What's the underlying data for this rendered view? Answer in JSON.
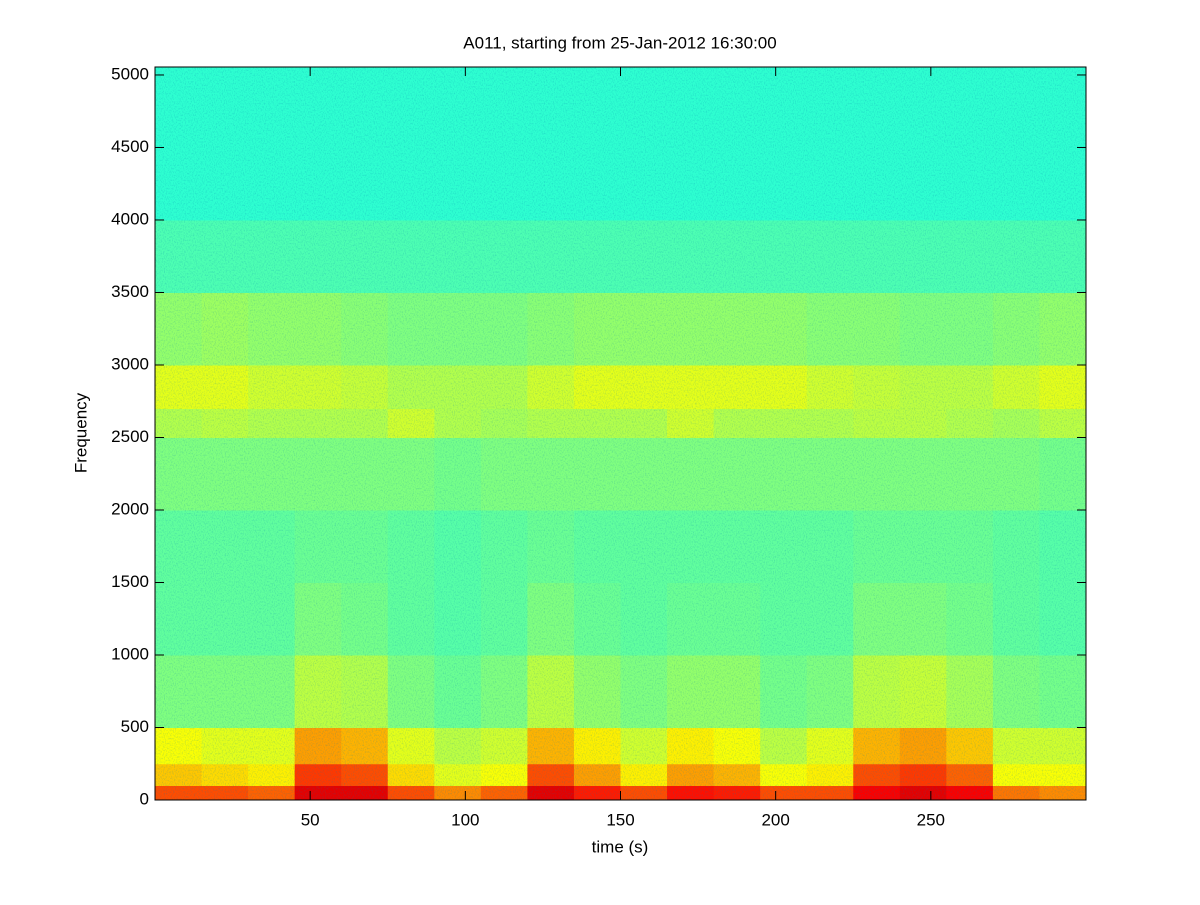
{
  "chart_data": {
    "type": "heatmap",
    "title": "A011, starting from 25-Jan-2012 16:30:00",
    "xlabel": "time (s)",
    "ylabel": "Frequency",
    "colormap": "jet",
    "clim": [
      0,
      1
    ],
    "xlim": [
      0,
      300
    ],
    "ylim": [
      0,
      5055
    ],
    "xticks": [
      50,
      100,
      150,
      200,
      250
    ],
    "yticks": [
      0,
      500,
      1000,
      1500,
      2000,
      2500,
      3000,
      3500,
      4000,
      4500,
      5000
    ],
    "x_edges": [
      0,
      15,
      30,
      45,
      60,
      75,
      90,
      105,
      120,
      135,
      150,
      165,
      180,
      195,
      210,
      225,
      240,
      255,
      270,
      285,
      300
    ],
    "y_edges": [
      0,
      100,
      250,
      500,
      1000,
      1500,
      2000,
      2500,
      2700,
      3000,
      3500,
      4000,
      5055
    ],
    "z": [
      [
        0.8,
        0.8,
        0.78,
        0.9,
        0.9,
        0.8,
        0.74,
        0.78,
        0.9,
        0.85,
        0.8,
        0.86,
        0.85,
        0.8,
        0.8,
        0.88,
        0.9,
        0.88,
        0.76,
        0.74
      ],
      [
        0.68,
        0.66,
        0.64,
        0.82,
        0.8,
        0.66,
        0.6,
        0.62,
        0.8,
        0.72,
        0.64,
        0.72,
        0.7,
        0.62,
        0.64,
        0.8,
        0.82,
        0.78,
        0.62,
        0.62
      ],
      [
        0.62,
        0.6,
        0.6,
        0.72,
        0.7,
        0.6,
        0.56,
        0.58,
        0.7,
        0.64,
        0.58,
        0.64,
        0.62,
        0.56,
        0.6,
        0.7,
        0.72,
        0.68,
        0.58,
        0.58
      ],
      [
        0.5,
        0.5,
        0.5,
        0.56,
        0.55,
        0.5,
        0.48,
        0.5,
        0.56,
        0.52,
        0.5,
        0.52,
        0.52,
        0.49,
        0.5,
        0.56,
        0.57,
        0.54,
        0.5,
        0.49
      ],
      [
        0.47,
        0.47,
        0.47,
        0.5,
        0.49,
        0.47,
        0.46,
        0.47,
        0.5,
        0.48,
        0.47,
        0.48,
        0.48,
        0.47,
        0.47,
        0.5,
        0.5,
        0.49,
        0.47,
        0.46
      ],
      [
        0.47,
        0.47,
        0.47,
        0.48,
        0.48,
        0.47,
        0.46,
        0.47,
        0.48,
        0.47,
        0.47,
        0.47,
        0.47,
        0.47,
        0.47,
        0.48,
        0.48,
        0.48,
        0.47,
        0.46
      ],
      [
        0.5,
        0.5,
        0.5,
        0.5,
        0.5,
        0.5,
        0.49,
        0.5,
        0.5,
        0.5,
        0.5,
        0.5,
        0.5,
        0.5,
        0.5,
        0.5,
        0.5,
        0.5,
        0.5,
        0.49
      ],
      [
        0.55,
        0.56,
        0.55,
        0.55,
        0.55,
        0.58,
        0.55,
        0.54,
        0.55,
        0.55,
        0.55,
        0.58,
        0.55,
        0.55,
        0.55,
        0.56,
        0.56,
        0.55,
        0.54,
        0.56
      ],
      [
        0.6,
        0.6,
        0.58,
        0.58,
        0.57,
        0.55,
        0.55,
        0.55,
        0.58,
        0.6,
        0.6,
        0.6,
        0.6,
        0.6,
        0.58,
        0.57,
        0.56,
        0.56,
        0.58,
        0.6
      ],
      [
        0.52,
        0.53,
        0.52,
        0.52,
        0.51,
        0.5,
        0.5,
        0.5,
        0.51,
        0.52,
        0.52,
        0.52,
        0.52,
        0.52,
        0.51,
        0.51,
        0.5,
        0.5,
        0.51,
        0.52
      ],
      [
        0.45,
        0.45,
        0.45,
        0.45,
        0.45,
        0.45,
        0.45,
        0.45,
        0.45,
        0.45,
        0.45,
        0.45,
        0.45,
        0.45,
        0.45,
        0.45,
        0.45,
        0.45,
        0.45,
        0.45
      ],
      [
        0.42,
        0.42,
        0.42,
        0.42,
        0.42,
        0.42,
        0.42,
        0.42,
        0.42,
        0.42,
        0.42,
        0.42,
        0.42,
        0.42,
        0.42,
        0.42,
        0.42,
        0.42,
        0.42,
        0.42
      ]
    ]
  }
}
